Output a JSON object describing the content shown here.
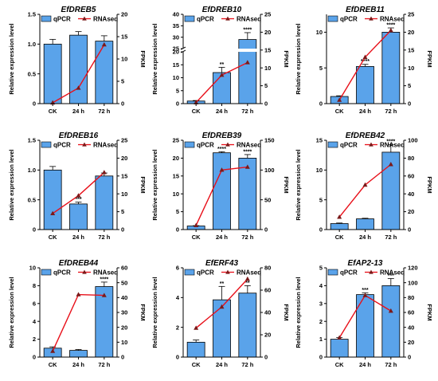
{
  "legend": {
    "bar_label": "qPCR",
    "line_label": "RNAseq"
  },
  "axis_labels": {
    "left": "Relative expression level",
    "right": "FPKM"
  },
  "colors": {
    "bar": "#5aa3ea",
    "line": "#e8101a",
    "marker": "#7a1a1a",
    "axis": "#000000"
  },
  "chart_data": [
    {
      "type": "bar",
      "title": "EfDREB5",
      "categories": [
        "CK",
        "24 h",
        "72 h"
      ],
      "series": [
        {
          "name": "qPCR",
          "values": [
            1.0,
            1.15,
            1.05
          ],
          "errors": [
            0.08,
            0.06,
            0.09
          ]
        },
        {
          "name": "RNAseq",
          "axis": "right",
          "values": [
            0.2,
            3.5,
            13.2
          ]
        }
      ],
      "left_axis": {
        "ylim": [
          0,
          1.5
        ],
        "ticks": [
          "0",
          "0.5",
          "1.0",
          "1.5"
        ]
      },
      "right_axis": {
        "ylim": [
          0,
          20
        ],
        "ticks": [
          "0",
          "5",
          "10",
          "15",
          "20"
        ]
      },
      "significance": [
        "",
        "",
        ""
      ]
    },
    {
      "type": "bar",
      "title": "EfDREB10",
      "categories": [
        "CK",
        "24 h",
        "72 h"
      ],
      "series": [
        {
          "name": "qPCR",
          "values": [
            1.0,
            12.0,
            29.0
          ],
          "errors": [
            0.2,
            2.0,
            3.0
          ]
        },
        {
          "name": "RNAseq",
          "axis": "right",
          "values": [
            0.3,
            8.0,
            11.5
          ]
        }
      ],
      "left_axis": {
        "ylim": [
          0,
          40
        ],
        "broken": [
          20,
          25
        ],
        "ticks": [
          "0",
          "5",
          "10",
          "15",
          "20",
          "25",
          "30",
          "35",
          "40"
        ]
      },
      "right_axis": {
        "ylim": [
          0,
          25
        ],
        "ticks": [
          "0",
          "5",
          "10",
          "15",
          "20",
          "25"
        ]
      },
      "significance": [
        "",
        "**",
        "****"
      ]
    },
    {
      "type": "bar",
      "title": "EfDREB11",
      "categories": [
        "CK",
        "24 h",
        "72 h"
      ],
      "series": [
        {
          "name": "qPCR",
          "values": [
            1.0,
            5.2,
            10.0
          ],
          "errors": [
            0.1,
            0.3,
            0.6
          ]
        },
        {
          "name": "RNAseq",
          "axis": "right",
          "values": [
            1.0,
            13.0,
            20.5
          ]
        }
      ],
      "left_axis": {
        "ylim": [
          0,
          12.5
        ],
        "ticks": [
          "0",
          "5",
          "10"
        ]
      },
      "right_axis": {
        "ylim": [
          0,
          25
        ],
        "ticks": [
          "0",
          "5",
          "10",
          "15",
          "20",
          "25"
        ]
      },
      "significance": [
        "",
        "****",
        "****"
      ]
    },
    {
      "type": "bar",
      "title": "EfDREB16",
      "categories": [
        "CK",
        "24 h",
        "72 h"
      ],
      "series": [
        {
          "name": "qPCR",
          "values": [
            1.0,
            0.43,
            0.9
          ],
          "errors": [
            0.06,
            0.03,
            0.05
          ]
        },
        {
          "name": "RNAseq",
          "axis": "right",
          "values": [
            4.5,
            9.5,
            16.0
          ]
        }
      ],
      "left_axis": {
        "ylim": [
          0,
          1.5
        ],
        "ticks": [
          "0",
          "0.5",
          "1.0",
          "1.5"
        ]
      },
      "right_axis": {
        "ylim": [
          0,
          25
        ],
        "ticks": [
          "0",
          "5",
          "10",
          "15",
          "20",
          "25"
        ]
      },
      "significance": [
        "",
        "***",
        ""
      ]
    },
    {
      "type": "bar",
      "title": "EfDREB39",
      "categories": [
        "CK",
        "24 h",
        "72 h"
      ],
      "series": [
        {
          "name": "qPCR",
          "values": [
            1.0,
            21.5,
            20.0
          ],
          "errors": [
            0.1,
            0.3,
            1.0
          ]
        },
        {
          "name": "RNAseq",
          "axis": "right",
          "values": [
            7.0,
            100.0,
            105.0
          ]
        }
      ],
      "left_axis": {
        "ylim": [
          0,
          25
        ],
        "ticks": [
          "0",
          "5",
          "10",
          "15",
          "20",
          "25"
        ]
      },
      "right_axis": {
        "ylim": [
          0,
          150
        ],
        "ticks": [
          "0",
          "50",
          "100",
          "150"
        ]
      },
      "significance": [
        "",
        "****",
        "****"
      ]
    },
    {
      "type": "bar",
      "title": "EfDREB42",
      "categories": [
        "CK",
        "24 h",
        "72 h"
      ],
      "series": [
        {
          "name": "qPCR",
          "values": [
            1.0,
            1.8,
            13.0
          ],
          "errors": [
            0.1,
            0.1,
            1.3
          ]
        },
        {
          "name": "RNAseq",
          "axis": "right",
          "values": [
            14.0,
            50.0,
            73.0
          ]
        }
      ],
      "left_axis": {
        "ylim": [
          0,
          15
        ],
        "ticks": [
          "0",
          "5",
          "10",
          "15"
        ]
      },
      "right_axis": {
        "ylim": [
          0,
          100
        ],
        "ticks": [
          "0",
          "20",
          "40",
          "60",
          "80",
          "100"
        ]
      },
      "significance": [
        "",
        "",
        "****"
      ]
    },
    {
      "type": "bar",
      "title": "EfDREB44",
      "categories": [
        "CK",
        "24 h",
        "72 h"
      ],
      "series": [
        {
          "name": "qPCR",
          "values": [
            1.0,
            0.75,
            7.9
          ],
          "errors": [
            0.15,
            0.1,
            0.5
          ]
        },
        {
          "name": "RNAseq",
          "axis": "right",
          "values": [
            4.0,
            42.0,
            41.5
          ]
        }
      ],
      "left_axis": {
        "ylim": [
          0,
          10
        ],
        "ticks": [
          "0",
          "2",
          "4",
          "6",
          "8",
          "10"
        ]
      },
      "right_axis": {
        "ylim": [
          0,
          60
        ],
        "ticks": [
          "0",
          "10",
          "20",
          "30",
          "40",
          "50",
          "60"
        ]
      },
      "significance": [
        "",
        "",
        "****"
      ]
    },
    {
      "type": "bar",
      "title": "EfERF43",
      "categories": [
        "CK",
        "24 h",
        "72 h"
      ],
      "series": [
        {
          "name": "qPCR",
          "values": [
            1.0,
            3.85,
            4.3
          ],
          "errors": [
            0.15,
            0.9,
            0.5
          ]
        },
        {
          "name": "RNAseq",
          "axis": "right",
          "values": [
            26.0,
            45.0,
            70.0
          ]
        }
      ],
      "left_axis": {
        "ylim": [
          0,
          6
        ],
        "ticks": [
          "0",
          "2",
          "4",
          "6"
        ]
      },
      "right_axis": {
        "ylim": [
          0,
          80
        ],
        "ticks": [
          "0",
          "20",
          "40",
          "60",
          "80"
        ]
      },
      "significance": [
        "",
        "**",
        "**"
      ]
    },
    {
      "type": "bar",
      "title": "EfAP2-13",
      "categories": [
        "CK",
        "24 h",
        "72 h"
      ],
      "series": [
        {
          "name": "qPCR",
          "values": [
            1.0,
            3.5,
            4.0
          ],
          "errors": [
            0.1,
            0.1,
            0.4
          ]
        },
        {
          "name": "RNAseq",
          "axis": "right",
          "values": [
            26.0,
            83.0,
            62.0
          ]
        }
      ],
      "left_axis": {
        "ylim": [
          0,
          5
        ],
        "ticks": [
          "0",
          "1",
          "2",
          "3",
          "4",
          "5"
        ]
      },
      "right_axis": {
        "ylim": [
          0,
          120
        ],
        "ticks": [
          "0",
          "20",
          "40",
          "60",
          "80",
          "100",
          "120"
        ]
      },
      "significance": [
        "",
        "***",
        "***"
      ]
    }
  ]
}
